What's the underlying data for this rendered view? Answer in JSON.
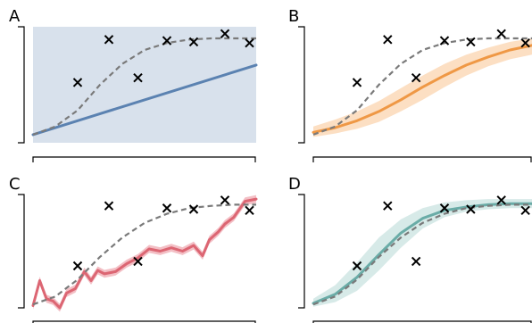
{
  "figure": {
    "panel_labels": [
      "A",
      "B",
      "C",
      "D"
    ]
  },
  "colors": {
    "blue": "#5b82b1",
    "blue_band": "#d8e1ec",
    "orange": "#ef9845",
    "orange_band": "#fbd9b8",
    "red": "#dc6673",
    "red_band": "#f2b8bf",
    "teal": "#6aaca7",
    "teal_band": "#d3e8e5",
    "truth": "#7a7a7a",
    "markers": "#000000"
  },
  "chart_data": [
    {
      "type": "line",
      "panel": "A",
      "title": "",
      "xlabel": "",
      "ylabel": "",
      "xlim": [
        0,
        1
      ],
      "ylim": [
        0,
        1
      ],
      "grid": false,
      "observations": {
        "marker": "x",
        "x": [
          0.2,
          0.34,
          0.47,
          0.6,
          0.72,
          0.86,
          0.97
        ],
        "y": [
          0.52,
          0.89,
          0.56,
          0.88,
          0.87,
          0.94,
          0.86
        ]
      },
      "truth": {
        "style": "dashed",
        "x": [
          0.0,
          0.1,
          0.2,
          0.3,
          0.4,
          0.5,
          0.6,
          0.7,
          0.8,
          0.9,
          1.0
        ],
        "y": [
          0.07,
          0.14,
          0.28,
          0.5,
          0.68,
          0.8,
          0.86,
          0.89,
          0.9,
          0.9,
          0.9
        ]
      },
      "fit": {
        "style": "solid",
        "x": [
          0.0,
          1.0
        ],
        "y": [
          0.07,
          0.67
        ]
      },
      "band": {
        "x": [
          0.0,
          0.5,
          1.0
        ],
        "lower": [
          0.0,
          0.0,
          0.0
        ],
        "upper": [
          1.0,
          1.0,
          1.0
        ]
      }
    },
    {
      "type": "line",
      "panel": "B",
      "title": "",
      "xlabel": "",
      "ylabel": "",
      "xlim": [
        0,
        1
      ],
      "ylim": [
        0,
        1
      ],
      "grid": false,
      "observations": {
        "marker": "x",
        "x": [
          0.2,
          0.34,
          0.47,
          0.6,
          0.72,
          0.86,
          0.97
        ],
        "y": [
          0.52,
          0.89,
          0.56,
          0.88,
          0.87,
          0.94,
          0.86
        ]
      },
      "truth": {
        "style": "dashed",
        "x": [
          0.0,
          0.1,
          0.2,
          0.3,
          0.4,
          0.5,
          0.6,
          0.7,
          0.8,
          0.9,
          1.0
        ],
        "y": [
          0.07,
          0.14,
          0.28,
          0.5,
          0.68,
          0.8,
          0.86,
          0.89,
          0.9,
          0.9,
          0.9
        ]
      },
      "fit": {
        "style": "solid",
        "x": [
          0.0,
          0.1,
          0.2,
          0.3,
          0.4,
          0.5,
          0.6,
          0.7,
          0.8,
          0.9,
          1.0
        ],
        "y": [
          0.09,
          0.13,
          0.19,
          0.27,
          0.37,
          0.48,
          0.58,
          0.67,
          0.74,
          0.8,
          0.84
        ]
      },
      "band": {
        "x": [
          0.0,
          0.1,
          0.2,
          0.3,
          0.4,
          0.5,
          0.6,
          0.7,
          0.8,
          0.9,
          1.0
        ],
        "lower": [
          0.05,
          0.08,
          0.12,
          0.18,
          0.27,
          0.37,
          0.48,
          0.58,
          0.66,
          0.72,
          0.76
        ],
        "upper": [
          0.14,
          0.2,
          0.27,
          0.36,
          0.47,
          0.58,
          0.68,
          0.76,
          0.82,
          0.87,
          0.9
        ]
      }
    },
    {
      "type": "line",
      "panel": "C",
      "title": "",
      "xlabel": "",
      "ylabel": "",
      "xlim": [
        0,
        1
      ],
      "ylim": [
        0,
        1
      ],
      "grid": false,
      "observations": {
        "marker": "x",
        "x": [
          0.2,
          0.34,
          0.47,
          0.6,
          0.72,
          0.86,
          0.97
        ],
        "y": [
          0.37,
          0.9,
          0.41,
          0.88,
          0.87,
          0.95,
          0.86
        ]
      },
      "truth": {
        "style": "dashed",
        "x": [
          0.0,
          0.1,
          0.2,
          0.3,
          0.4,
          0.5,
          0.6,
          0.7,
          0.8,
          0.9,
          1.0
        ],
        "y": [
          0.03,
          0.1,
          0.25,
          0.45,
          0.62,
          0.75,
          0.83,
          0.88,
          0.9,
          0.91,
          0.91
        ]
      },
      "fit": {
        "style": "solid",
        "x": [
          0.0,
          0.03,
          0.06,
          0.09,
          0.12,
          0.15,
          0.19,
          0.23,
          0.26,
          0.29,
          0.32,
          0.37,
          0.42,
          0.47,
          0.52,
          0.57,
          0.62,
          0.67,
          0.72,
          0.76,
          0.79,
          0.83,
          0.86,
          0.9,
          0.95,
          1.0
        ],
        "y": [
          0.02,
          0.24,
          0.08,
          0.06,
          0.0,
          0.13,
          0.17,
          0.32,
          0.24,
          0.33,
          0.3,
          0.32,
          0.39,
          0.44,
          0.52,
          0.5,
          0.53,
          0.5,
          0.55,
          0.46,
          0.6,
          0.67,
          0.74,
          0.8,
          0.94,
          0.96
        ]
      },
      "band_halfwidth": 0.035
    },
    {
      "type": "line",
      "panel": "D",
      "title": "",
      "xlabel": "",
      "ylabel": "",
      "xlim": [
        0,
        1
      ],
      "ylim": [
        0,
        1
      ],
      "grid": false,
      "observations": {
        "marker": "x",
        "x": [
          0.2,
          0.34,
          0.47,
          0.6,
          0.72,
          0.86,
          0.97
        ],
        "y": [
          0.37,
          0.9,
          0.41,
          0.88,
          0.87,
          0.95,
          0.86
        ]
      },
      "truth": {
        "style": "dashed",
        "x": [
          0.0,
          0.1,
          0.2,
          0.3,
          0.4,
          0.5,
          0.6,
          0.7,
          0.8,
          0.9,
          1.0
        ],
        "y": [
          0.03,
          0.1,
          0.25,
          0.45,
          0.62,
          0.75,
          0.83,
          0.88,
          0.9,
          0.91,
          0.91
        ]
      },
      "fit": {
        "style": "solid",
        "x": [
          0.0,
          0.1,
          0.2,
          0.3,
          0.4,
          0.5,
          0.6,
          0.7,
          0.8,
          0.9,
          1.0
        ],
        "y": [
          0.04,
          0.12,
          0.27,
          0.47,
          0.66,
          0.79,
          0.86,
          0.89,
          0.91,
          0.92,
          0.92
        ]
      },
      "band": {
        "x": [
          0.0,
          0.1,
          0.2,
          0.3,
          0.4,
          0.5,
          0.6,
          0.7,
          0.8,
          0.9,
          1.0
        ],
        "lower": [
          0.01,
          0.05,
          0.15,
          0.33,
          0.53,
          0.7,
          0.8,
          0.85,
          0.87,
          0.88,
          0.88
        ],
        "upper": [
          0.08,
          0.2,
          0.4,
          0.62,
          0.78,
          0.88,
          0.93,
          0.95,
          0.96,
          0.96,
          0.96
        ]
      }
    }
  ]
}
